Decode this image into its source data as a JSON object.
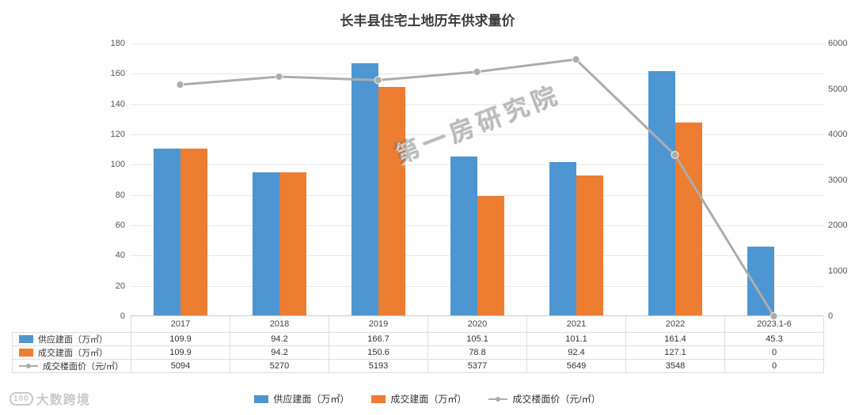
{
  "title": "长丰县住宅土地历年供求量价",
  "watermark": "第一房研究院",
  "logo": {
    "icon_text": "100",
    "text": "大数跨境"
  },
  "chart_data": {
    "type": "bar",
    "title": "长丰县住宅土地历年供求量价",
    "categories": [
      "2017",
      "2018",
      "2019",
      "2020",
      "2021",
      "2022",
      "2023.1-6"
    ],
    "series": [
      {
        "key": "supply-area",
        "name": "供应建面（万㎡）",
        "type": "bar",
        "axis": "left",
        "color": "#4E96D2",
        "values": [
          109.9,
          94.2,
          166.7,
          105.1,
          101.1,
          161.4,
          45.3
        ]
      },
      {
        "key": "deal-area",
        "name": "成交建面（万㎡）",
        "type": "bar",
        "axis": "left",
        "color": "#ED7D31",
        "values": [
          109.9,
          94.2,
          150.6,
          78.8,
          92.4,
          127.1,
          0
        ]
      },
      {
        "key": "floor-price",
        "name": "成交楼面价（元/㎡）",
        "type": "line",
        "axis": "right",
        "color": "#ACACAC",
        "values": [
          5094,
          5270,
          5193,
          5377,
          5649,
          3548,
          0
        ]
      }
    ],
    "left_axis": {
      "min": 0,
      "max": 180,
      "step": 20,
      "ticks": [
        0,
        20,
        40,
        60,
        80,
        100,
        120,
        140,
        160,
        180
      ]
    },
    "right_axis": {
      "min": 0,
      "max": 6000,
      "step": 1000,
      "ticks": [
        0,
        1000,
        2000,
        3000,
        4000,
        5000,
        6000
      ]
    },
    "grid": true,
    "legend_position": "bottom",
    "xlabel": "",
    "ylabel": ""
  }
}
